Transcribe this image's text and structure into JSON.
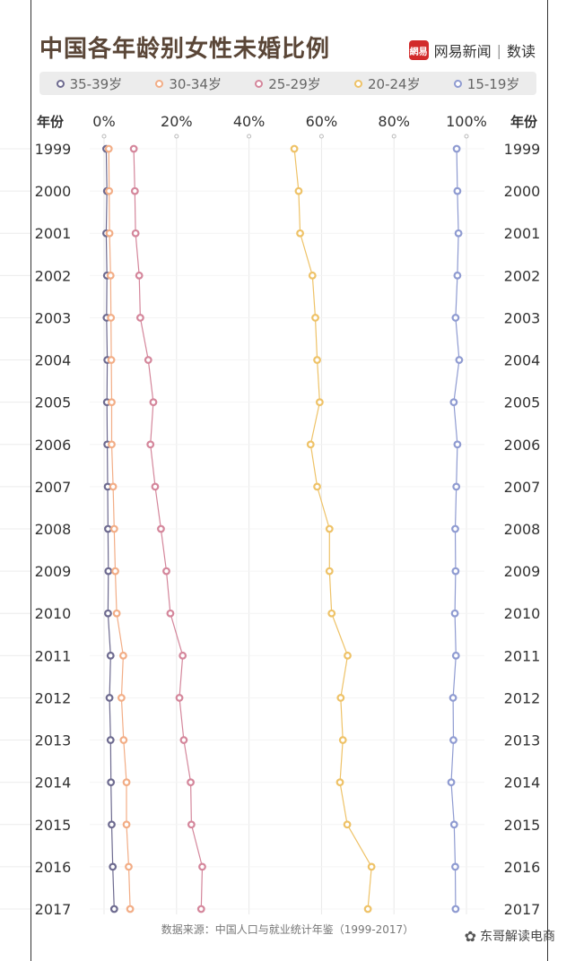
{
  "header": {
    "title": "中国各年龄别女性未婚比例",
    "brand_logo_text": "網易",
    "brand_name": "网易新闻",
    "brand_sep": "|",
    "brand_sub": "数读"
  },
  "footer": {
    "source": "数据来源：中国人口与就业统计年鉴（1999-2017）"
  },
  "watermark": {
    "text": "东哥解读电商"
  },
  "chart_data": {
    "type": "line",
    "orientation": "vertical-years",
    "year_axis_label": "年份",
    "x_ticks": [
      "0%",
      "20%",
      "40%",
      "60%",
      "80%",
      "100%"
    ],
    "xlim": [
      0,
      100
    ],
    "years": [
      "1999",
      "2000",
      "2001",
      "2002",
      "2003",
      "2004",
      "2005",
      "2006",
      "2007",
      "2008",
      "2009",
      "2010",
      "2011",
      "2012",
      "2013",
      "2014",
      "2015",
      "2016",
      "2017"
    ],
    "grid": true,
    "series": [
      {
        "name": "35-39岁",
        "color": "#6d6a8f",
        "values": [
          0.6,
          0.8,
          0.6,
          0.8,
          0.7,
          0.9,
          0.8,
          0.9,
          1.0,
          1.1,
          1.2,
          1.1,
          1.8,
          1.5,
          1.8,
          1.9,
          2.1,
          2.4,
          2.8
        ]
      },
      {
        "name": "30-34岁",
        "color": "#f2ad86",
        "values": [
          1.3,
          1.4,
          1.5,
          1.8,
          1.9,
          2.0,
          2.1,
          2.1,
          2.5,
          2.8,
          3.1,
          3.5,
          5.3,
          4.8,
          5.4,
          6.2,
          6.2,
          6.8,
          7.2
        ]
      },
      {
        "name": "25-29岁",
        "color": "#d4869b",
        "values": [
          8.2,
          8.5,
          8.7,
          9.7,
          10.0,
          12.2,
          13.6,
          12.8,
          14.1,
          15.7,
          17.2,
          18.3,
          21.7,
          20.8,
          22.0,
          23.9,
          24.1,
          27.1,
          26.8
        ]
      },
      {
        "name": "20-24岁",
        "color": "#eec267",
        "values": [
          52.5,
          53.7,
          54.1,
          57.5,
          58.3,
          58.8,
          59.5,
          57.0,
          58.8,
          62.2,
          62.2,
          62.8,
          67.2,
          65.3,
          65.9,
          65.1,
          67.1,
          73.8,
          72.8
        ]
      },
      {
        "name": "15-19岁",
        "color": "#8f9bd1",
        "values": [
          97.3,
          97.5,
          97.8,
          97.5,
          97.0,
          98.0,
          96.5,
          97.5,
          97.2,
          96.9,
          97.0,
          96.8,
          97.1,
          96.3,
          96.4,
          95.8,
          96.6,
          96.9,
          97.0
        ]
      }
    ]
  }
}
